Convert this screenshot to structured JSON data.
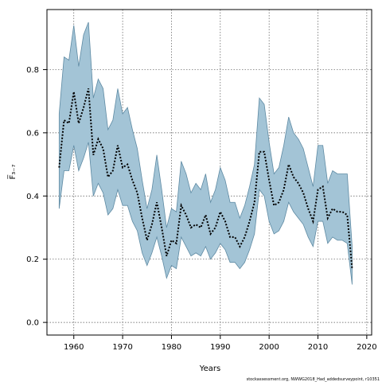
{
  "chart_data": {
    "type": "area",
    "xlabel": "Years",
    "ylabel": "F̅₃₋₇",
    "credit": "stockassessment.org, NWWG2018_Had_addedsurveypoint, r10351",
    "xlim": [
      1954.5,
      2021
    ],
    "ylim": [
      -0.04,
      0.99
    ],
    "x_ticks": [
      1960,
      1970,
      1980,
      1990,
      2000,
      2010,
      2020
    ],
    "y_ticks": [
      0.0,
      0.2,
      0.4,
      0.6,
      0.8
    ],
    "y_tick_labels": [
      "0.0",
      "0.2",
      "0.4",
      "0.6",
      "0.8"
    ],
    "grid": true,
    "colors": {
      "band_fill": "#a3c4d6",
      "band_edge": "#5e8aa3",
      "line": "#000000",
      "frame": "#000000"
    },
    "years": [
      1957,
      1958,
      1959,
      1960,
      1961,
      1962,
      1963,
      1964,
      1965,
      1966,
      1967,
      1968,
      1969,
      1970,
      1971,
      1972,
      1973,
      1974,
      1975,
      1976,
      1977,
      1978,
      1979,
      1980,
      1981,
      1982,
      1983,
      1984,
      1985,
      1986,
      1987,
      1988,
      1989,
      1990,
      1991,
      1992,
      1993,
      1994,
      1995,
      1996,
      1997,
      1998,
      1999,
      2000,
      2001,
      2002,
      2003,
      2004,
      2005,
      2006,
      2007,
      2008,
      2009,
      2010,
      2011,
      2012,
      2013,
      2014,
      2015,
      2016,
      2017
    ],
    "series": [
      {
        "name": "estimate",
        "values": [
          0.49,
          0.64,
          0.63,
          0.73,
          0.63,
          0.68,
          0.74,
          0.53,
          0.58,
          0.55,
          0.46,
          0.48,
          0.56,
          0.49,
          0.5,
          0.45,
          0.41,
          0.33,
          0.26,
          0.31,
          0.38,
          0.3,
          0.21,
          0.26,
          0.25,
          0.37,
          0.34,
          0.3,
          0.31,
          0.3,
          0.34,
          0.28,
          0.3,
          0.35,
          0.32,
          0.27,
          0.27,
          0.24,
          0.27,
          0.32,
          0.38,
          0.54,
          0.54,
          0.45,
          0.37,
          0.38,
          0.42,
          0.5,
          0.46,
          0.44,
          0.41,
          0.36,
          0.32,
          0.42,
          0.43,
          0.33,
          0.36,
          0.35,
          0.35,
          0.34,
          0.17
        ]
      },
      {
        "name": "upper",
        "values": [
          0.66,
          0.84,
          0.83,
          0.94,
          0.81,
          0.91,
          0.95,
          0.71,
          0.77,
          0.74,
          0.61,
          0.64,
          0.74,
          0.66,
          0.68,
          0.61,
          0.55,
          0.45,
          0.36,
          0.42,
          0.53,
          0.42,
          0.3,
          0.36,
          0.35,
          0.51,
          0.47,
          0.41,
          0.44,
          0.42,
          0.47,
          0.38,
          0.42,
          0.49,
          0.45,
          0.38,
          0.38,
          0.33,
          0.37,
          0.43,
          0.5,
          0.71,
          0.69,
          0.57,
          0.47,
          0.49,
          0.56,
          0.65,
          0.6,
          0.58,
          0.55,
          0.49,
          0.43,
          0.56,
          0.56,
          0.44,
          0.48,
          0.47,
          0.47,
          0.47,
          0.24
        ]
      },
      {
        "name": "lower",
        "values": [
          0.36,
          0.48,
          0.48,
          0.56,
          0.48,
          0.52,
          0.57,
          0.4,
          0.44,
          0.41,
          0.34,
          0.36,
          0.42,
          0.37,
          0.37,
          0.32,
          0.29,
          0.22,
          0.18,
          0.22,
          0.27,
          0.21,
          0.14,
          0.18,
          0.17,
          0.27,
          0.24,
          0.21,
          0.22,
          0.21,
          0.24,
          0.2,
          0.22,
          0.25,
          0.23,
          0.19,
          0.19,
          0.17,
          0.19,
          0.23,
          0.28,
          0.42,
          0.4,
          0.32,
          0.28,
          0.29,
          0.32,
          0.38,
          0.35,
          0.33,
          0.31,
          0.27,
          0.24,
          0.32,
          0.32,
          0.25,
          0.27,
          0.26,
          0.26,
          0.25,
          0.12
        ]
      }
    ]
  }
}
